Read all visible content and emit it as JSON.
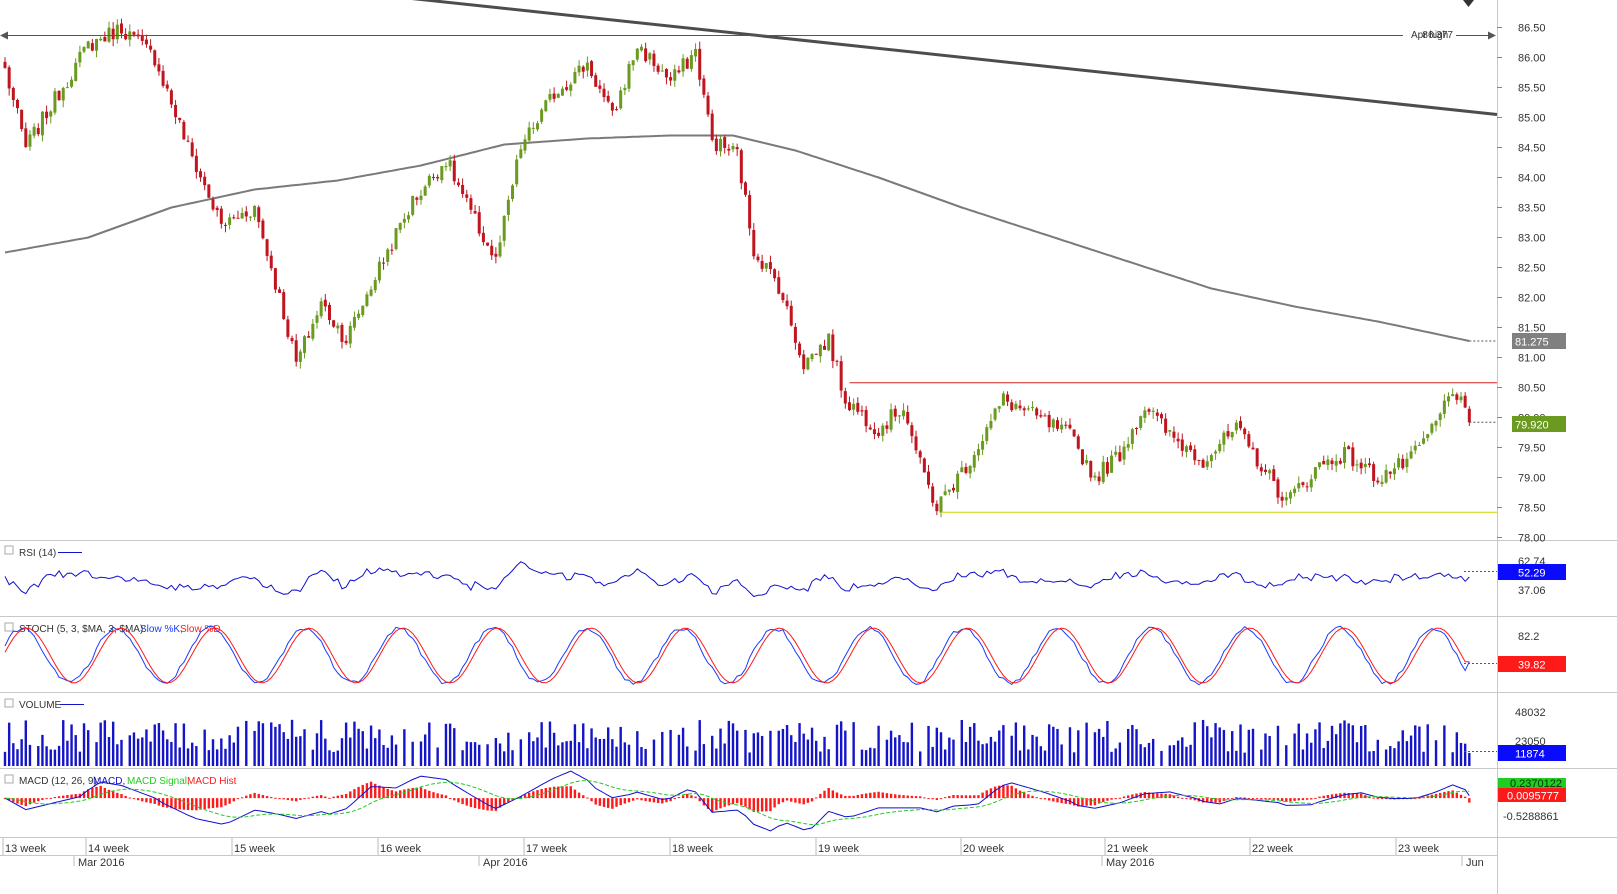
{
  "chart_data": {
    "type": "candlestick",
    "price_axis": {
      "min": 78.0,
      "max": 86.75,
      "tick_labels": [
        "86.50",
        "86.00",
        "85.50",
        "85.00",
        "84.50",
        "84.00",
        "83.50",
        "83.00",
        "82.50",
        "82.00",
        "81.50",
        "81.00",
        "80.50",
        "80.00",
        "79.50",
        "79.00",
        "78.50",
        "78.00"
      ]
    },
    "time_axis": {
      "week_labels": [
        "13 week",
        "14 week",
        "15 week",
        "16 week",
        "17 week",
        "18 week",
        "19 week",
        "20 week",
        "21 week",
        "22 week",
        "23 week"
      ],
      "month_labels": [
        "Mar 2016",
        "Apr 2016",
        "May 2016",
        "Jun"
      ]
    },
    "annotations": {
      "apr_high_label": "Apr high",
      "apr_high_value": 86.377,
      "apr_high_value_text": "86.377",
      "current_price": 79.92,
      "current_price_text": "79.920",
      "sma_last": 81.275,
      "sma_last_text": "81.275",
      "resistance": 80.58,
      "support": 78.42
    },
    "trendline": {
      "start_price": 87.2,
      "end_price": 85.05
    },
    "price_waypoints": [
      [
        0,
        85.8
      ],
      [
        5,
        84.5
      ],
      [
        12,
        85.3
      ],
      [
        20,
        86.2
      ],
      [
        28,
        86.5
      ],
      [
        36,
        86.0
      ],
      [
        44,
        84.5
      ],
      [
        52,
        83.2
      ],
      [
        60,
        83.5
      ],
      [
        66,
        82.0
      ],
      [
        70,
        80.9
      ],
      [
        76,
        81.9
      ],
      [
        82,
        81.3
      ],
      [
        90,
        82.5
      ],
      [
        98,
        83.6
      ],
      [
        106,
        84.3
      ],
      [
        112,
        83.4
      ],
      [
        118,
        82.6
      ],
      [
        124,
        84.5
      ],
      [
        132,
        85.4
      ],
      [
        140,
        85.9
      ],
      [
        146,
        85.0
      ],
      [
        152,
        86.2
      ],
      [
        160,
        85.6
      ],
      [
        166,
        86.1
      ],
      [
        170,
        84.6
      ],
      [
        176,
        84.4
      ],
      [
        180,
        82.8
      ],
      [
        186,
        82.2
      ],
      [
        192,
        80.9
      ],
      [
        198,
        81.3
      ],
      [
        202,
        80.3
      ],
      [
        210,
        79.8
      ],
      [
        216,
        80.2
      ],
      [
        220,
        79.2
      ],
      [
        224,
        78.5
      ],
      [
        232,
        79.3
      ],
      [
        240,
        80.3
      ],
      [
        248,
        80.0
      ],
      [
        256,
        79.7
      ],
      [
        262,
        79.0
      ],
      [
        268,
        79.4
      ],
      [
        274,
        80.2
      ],
      [
        280,
        79.7
      ],
      [
        288,
        79.3
      ],
      [
        296,
        79.8
      ],
      [
        302,
        79.2
      ],
      [
        308,
        78.6
      ],
      [
        316,
        79.2
      ],
      [
        322,
        79.4
      ],
      [
        330,
        79.0
      ],
      [
        338,
        79.3
      ],
      [
        344,
        79.9
      ],
      [
        348,
        80.5
      ],
      [
        352,
        79.92
      ]
    ],
    "sma_waypoints": [
      [
        0,
        82.75
      ],
      [
        20,
        83.0
      ],
      [
        40,
        83.5
      ],
      [
        60,
        83.8
      ],
      [
        80,
        83.95
      ],
      [
        100,
        84.2
      ],
      [
        120,
        84.55
      ],
      [
        140,
        84.65
      ],
      [
        160,
        84.7
      ],
      [
        175,
        84.7
      ],
      [
        190,
        84.45
      ],
      [
        210,
        84.0
      ],
      [
        230,
        83.5
      ],
      [
        250,
        83.05
      ],
      [
        270,
        82.6
      ],
      [
        290,
        82.15
      ],
      [
        310,
        81.85
      ],
      [
        330,
        81.6
      ],
      [
        352,
        81.275
      ]
    ],
    "rsi": {
      "name": "RSI (14)",
      "last": 52.29,
      "last_text": "52.29",
      "ticks": [
        "62.74",
        "37.06"
      ],
      "tick_values": [
        62.74,
        37.06
      ],
      "min": 20,
      "max": 80
    },
    "stochastic": {
      "name": "STOCH (5, 3, $MA, 3, $MA):",
      "k_label": "Slow %K,",
      "d_label": "Slow %D",
      "last": 39.82,
      "last_text": "39.82",
      "ticks": [
        "82.2"
      ],
      "tick_values": [
        82.2
      ],
      "min": 0,
      "max": 100
    },
    "volume": {
      "name": "VOLUME",
      "last": 11874,
      "last_text": "11874",
      "ticks": [
        "48032",
        "23050"
      ],
      "tick_values": [
        48032,
        23050
      ],
      "max": 60000
    },
    "macd": {
      "name": "MACD (12, 26, 9):",
      "macd_label": "MACD,",
      "signal_label": "MACD Signal,",
      "hist_label": "MACD Hist",
      "value_text": "0.2370122",
      "hist_text": "0.0095777",
      "tick": "-0.5288861",
      "min": -0.75,
      "max": 0.45
    }
  },
  "colors": {
    "bull": "#6a9a1f",
    "bear": "#c0141e",
    "sma": "#7a7a7a",
    "trend": "#4d4d4d",
    "resistance": "#d62020",
    "support": "#c8d400",
    "rsi": "#1010d0",
    "k": "#1a3cff",
    "d": "#ff1a1a",
    "volume": "#1414c8",
    "signal": "#22cc22"
  }
}
